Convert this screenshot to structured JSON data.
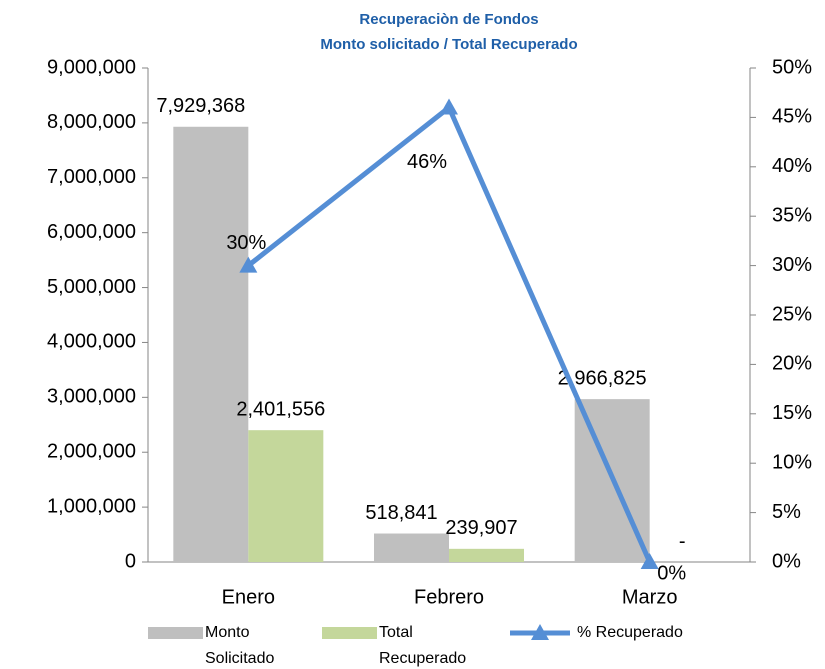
{
  "chart_data": {
    "type": "bar_line",
    "title": "Recuperaciòn de Fondos",
    "subtitle": "Monto solicitado / Total Recuperado",
    "categories": [
      "Enero",
      "Febrero",
      "Marzo"
    ],
    "series": [
      {
        "name": "Monto Solicitado",
        "type": "bar",
        "color": "#bfbfbf",
        "values": [
          7929368,
          518841,
          2966825
        ],
        "value_labels": [
          "7,929,368",
          "518,841",
          "2,966,825"
        ]
      },
      {
        "name": "Total Recuperado",
        "type": "bar",
        "color": "#c4d79b",
        "values": [
          2401556,
          239907,
          0
        ],
        "value_labels": [
          "2,401,556",
          "239,907",
          "-"
        ]
      },
      {
        "name": "% Recuperado",
        "type": "line",
        "axis": "y2",
        "color": "#558ed5",
        "values": [
          30,
          46,
          0
        ],
        "value_labels": [
          "30%",
          "46%",
          "0%"
        ]
      }
    ],
    "ylim": [
      0,
      9000000
    ],
    "yticks": [
      0,
      {
        "value": 1000000,
        "label": "1,000,000"
      },
      {
        "value": 2000000,
        "label": "2,000,000"
      },
      {
        "value": 3000000,
        "label": "3,000,000"
      },
      {
        "value": 4000000,
        "label": "4,000,000"
      },
      {
        "value": 5000000,
        "label": "5,000,000"
      },
      {
        "value": 6000000,
        "label": "6,000,000"
      },
      {
        "value": 7000000,
        "label": "7,000,000"
      },
      {
        "value": 8000000,
        "label": "8,000,000"
      },
      {
        "value": 9000000,
        "label": "9,000,000"
      }
    ],
    "y2lim": [
      0,
      50
    ],
    "y2ticks": [
      {
        "value": 0,
        "label": "0%"
      },
      {
        "value": 5,
        "label": "5%"
      },
      {
        "value": 10,
        "label": "10%"
      },
      {
        "value": 15,
        "label": "15%"
      },
      {
        "value": 20,
        "label": "20%"
      },
      {
        "value": 25,
        "label": "25%"
      },
      {
        "value": 30,
        "label": "30%"
      },
      {
        "value": 35,
        "label": "35%"
      },
      {
        "value": 40,
        "label": "40%"
      },
      {
        "value": 45,
        "label": "45%"
      },
      {
        "value": 50,
        "label": "50%"
      }
    ],
    "legend": "bottom"
  }
}
